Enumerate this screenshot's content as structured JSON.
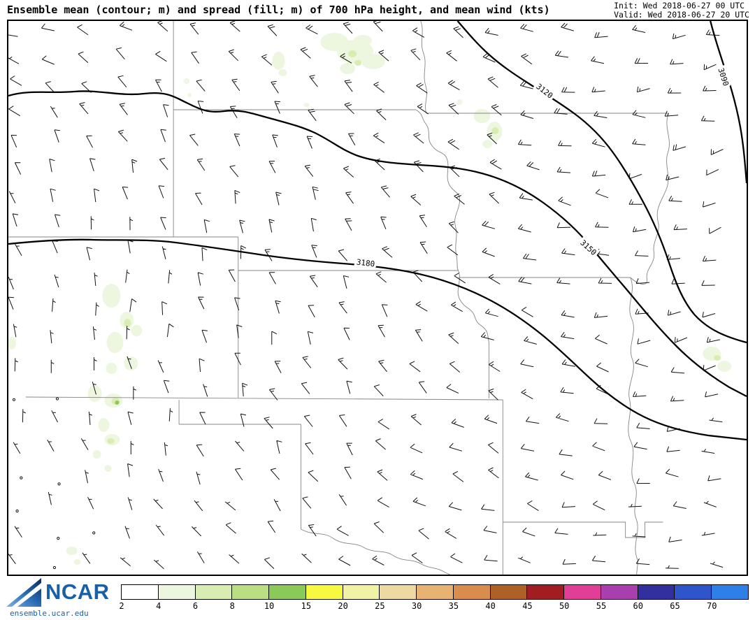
{
  "header": {
    "title": "Ensemble mean (contour; m) and spread (fill; m) of 700 hPa height, and mean wind (kts)",
    "init_label": "Init: Wed 2018-06-27 00 UTC",
    "valid_label": "Valid: Wed 2018-06-27 20 UTC"
  },
  "footer": {
    "logo_text": "NCAR",
    "url": "ensemble.ucar.edu"
  },
  "chart_data": {
    "type": "heatmap",
    "subtype": "contour map with wind barbs and spread shading",
    "title": "Ensemble mean (contour; m) and spread (fill; m) of 700 hPa height, and mean wind (kts)",
    "contour_levels_m": [
      3090,
      3120,
      3150,
      3180
    ],
    "contour_labels": [
      "3090",
      "3120",
      "3150",
      "3180"
    ],
    "contour_interval_m": 30,
    "wind_symbol": "wind-barb",
    "wind_units": "kts",
    "spread_units": "m",
    "legend_position": "bottom",
    "colorbar": {
      "ticks": [
        2,
        4,
        6,
        8,
        10,
        15,
        20,
        25,
        30,
        35,
        40,
        45,
        50,
        55,
        60,
        65,
        70
      ],
      "colors": [
        "#ffffff",
        "#edf6df",
        "#d9edb2",
        "#b9de84",
        "#8bca59",
        "#f8f840",
        "#f2f2a6",
        "#eed9a2",
        "#e7b372",
        "#d98c4b",
        "#ae6127",
        "#a11d21",
        "#e03e97",
        "#a93fae",
        "#32309f",
        "#2f55cb",
        "#2e80e8"
      ]
    }
  }
}
